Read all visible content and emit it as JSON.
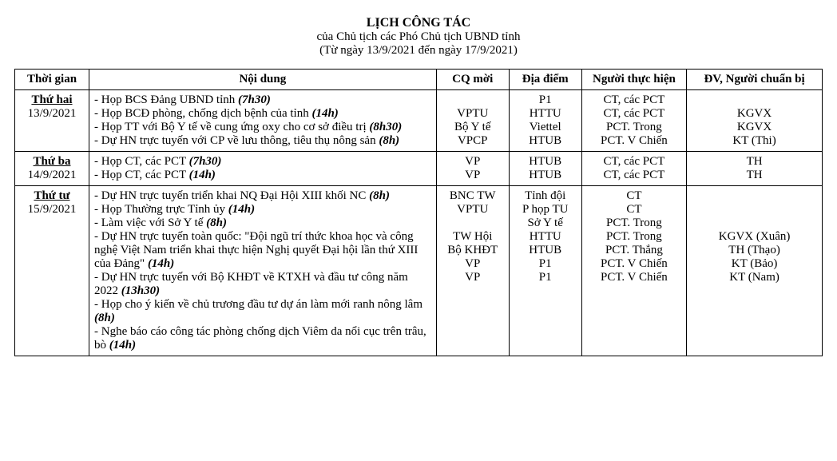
{
  "title": {
    "main": "LỊCH  CÔNG TÁC",
    "sub1": "của Chủ tịch các Phó Chủ tịch UBND tỉnh",
    "sub2": "(Từ ngày 13/9/2021 đến ngày 17/9/2021)"
  },
  "columns": {
    "time": "Thời gian",
    "content": "Nội dung",
    "cqmoi": "CQ mời",
    "diadiem": "Địa điểm",
    "nguoi": "Người thực hiện",
    "dv": "ĐV, Người chuẩn bị"
  },
  "rows": [
    {
      "day_name": "Thứ hai",
      "date": "13/9/2021",
      "items": [
        {
          "text": "- Họp BCS Đảng UBND tỉnh ",
          "time": "(7h30)",
          "cqmoi": "",
          "diadiem": "P1",
          "nguoi": "CT, các PCT",
          "dv": ""
        },
        {
          "text": "- Họp BCĐ phòng, chống dịch bệnh của tỉnh ",
          "time": "(14h)",
          "cqmoi": "VPTU",
          "diadiem": "HTTU",
          "nguoi": "CT, các PCT",
          "dv": "KGVX"
        },
        {
          "text": "- Họp TT với Bộ Y tế về cung ứng oxy cho cơ sở điều trị ",
          "time": "(8h30)",
          "cqmoi": "Bộ Y tế",
          "diadiem": "Viettel",
          "nguoi": "PCT. Trong",
          "dv": "KGVX"
        },
        {
          "text": "- Dự HN trực tuyến với CP về lưu thông, tiêu thụ nông sản ",
          "time": "(8h)",
          "cqmoi": "VPCP",
          "diadiem": "HTUB",
          "nguoi": "PCT. V Chiến",
          "dv": "KT (Thi)"
        }
      ]
    },
    {
      "day_name": "Thứ ba",
      "date": "14/9/2021",
      "items": [
        {
          "text": "- Họp CT, các PCT ",
          "time": "(7h30)",
          "cqmoi": "VP",
          "diadiem": "HTUB",
          "nguoi": "CT, các PCT",
          "dv": "TH"
        },
        {
          "text": "- Họp CT, các PCT ",
          "time": "(14h)",
          "cqmoi": "VP",
          "diadiem": "HTUB",
          "nguoi": "CT, các PCT",
          "dv": "TH"
        }
      ]
    },
    {
      "day_name": "Thứ tư",
      "date": "15/9/2021",
      "items": [
        {
          "text": "- Dự HN trực tuyến triển khai NQ Đại Hội XIII khối NC ",
          "time": "(8h)",
          "cqmoi": "BNC TW",
          "diadiem": "Tỉnh đội",
          "nguoi": "CT",
          "dv": ""
        },
        {
          "text": "- Họp Thường trực Tỉnh ủy ",
          "time": "(14h)",
          "cqmoi": "VPTU",
          "diadiem": "P họp TU",
          "nguoi": "CT",
          "dv": ""
        },
        {
          "text": "- Làm việc với Sở Y tế ",
          "time": "(8h)",
          "cqmoi": "",
          "diadiem": "Sở Y tế",
          "nguoi": "PCT. Trong",
          "dv": ""
        },
        {
          "text": "- Dự HN trực tuyến toàn quốc: \"Đội ngũ trí thức khoa học và công nghệ Việt Nam triển khai thực hiện Nghị quyết Đại hội lần thứ XIII của Đảng\" ",
          "time": "(14h)",
          "cqmoi": "TW Hội",
          "diadiem": "HTTU",
          "nguoi": "PCT. Trong",
          "dv": "KGVX (Xuân)"
        },
        {
          "text": "- Dự HN trực tuyến với Bộ KHĐT về KTXH và đầu tư công năm 2022 ",
          "time": "(13h30)",
          "cqmoi": "Bộ KHĐT",
          "diadiem": "HTUB",
          "nguoi": "PCT. Thắng",
          "dv": "TH (Thạo)"
        },
        {
          "text": "- Họp cho ý kiến về chủ trương đầu tư dự án làm mới ranh nông lâm ",
          "time": "(8h)",
          "cqmoi": "VP",
          "diadiem": "P1",
          "nguoi": "PCT. V Chiến",
          "dv": "KT (Bảo)"
        },
        {
          "text": "- Nghe báo cáo công tác phòng chống dịch Viêm da nổi cục trên trâu, bò ",
          "time": "(14h)",
          "cqmoi": "VP",
          "diadiem": "P1",
          "nguoi": "PCT. V Chiến",
          "dv": "KT (Nam)"
        }
      ]
    }
  ]
}
